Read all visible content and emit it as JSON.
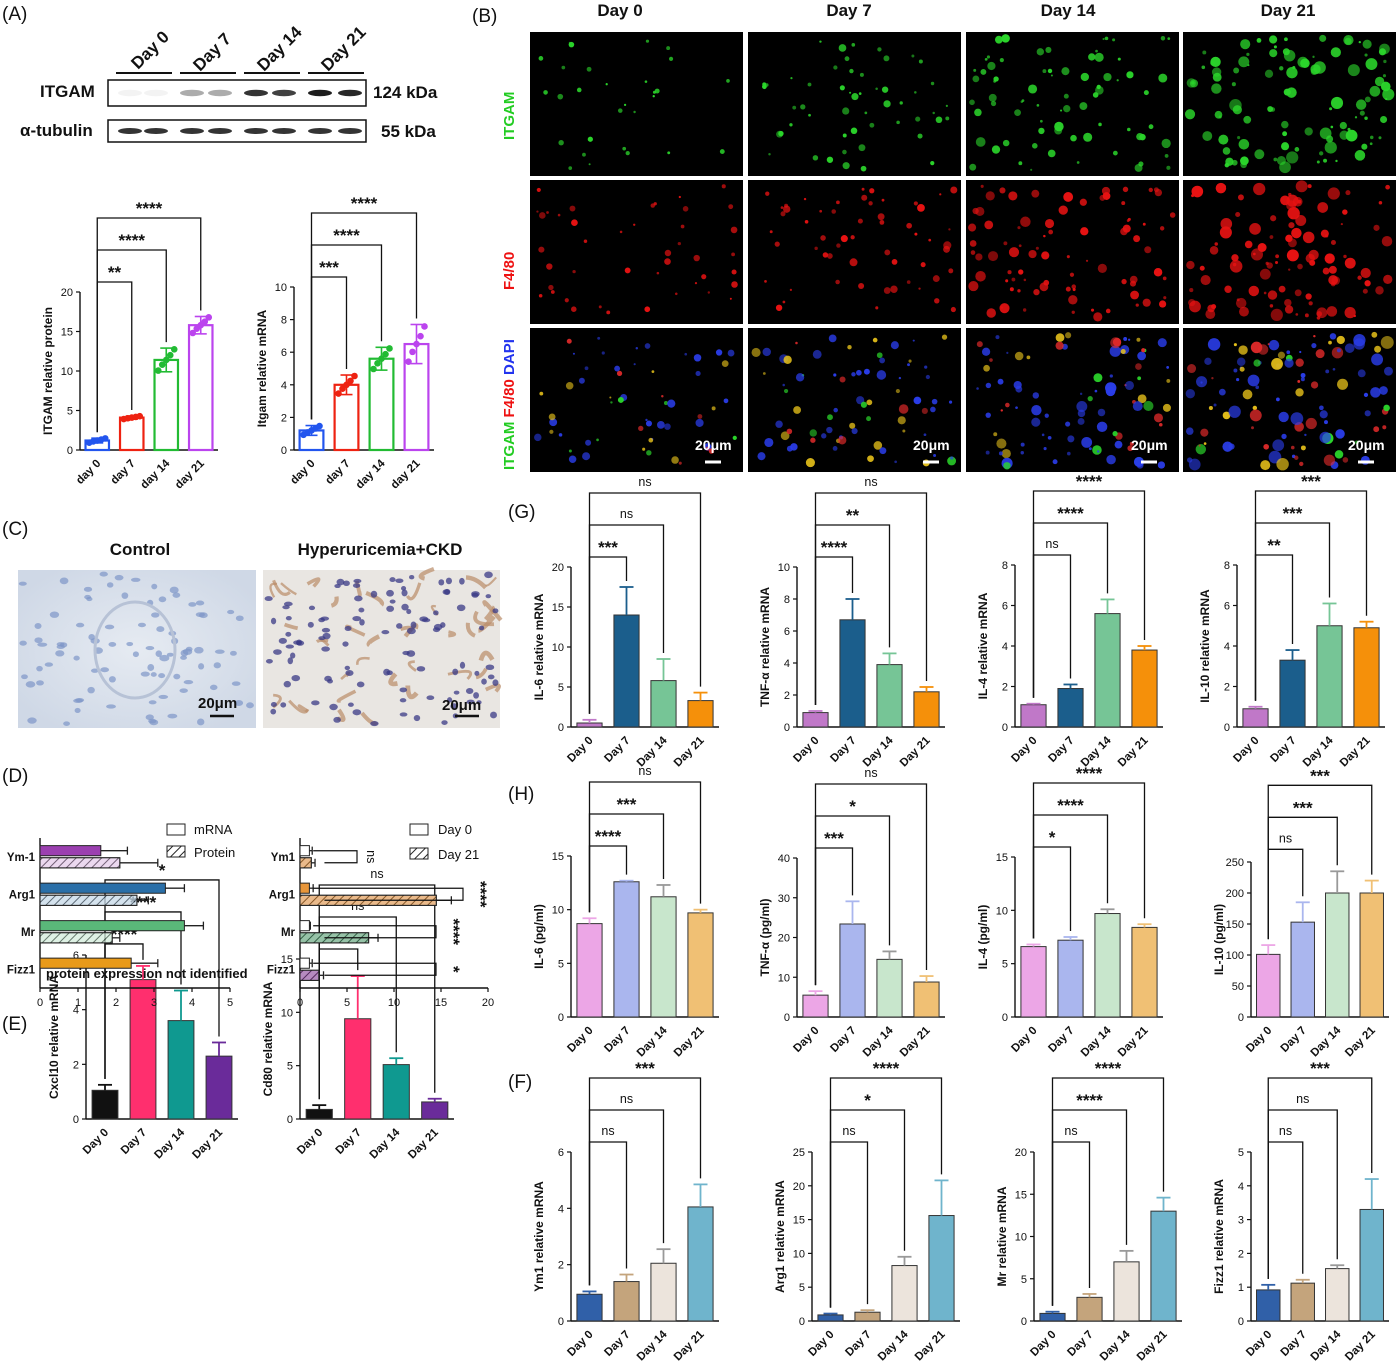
{
  "panel_labels": {
    "A": "(A)",
    "B": "(B)",
    "C": "(C)",
    "D": "(D)",
    "E": "(E)",
    "F": "(F)",
    "G": "(G)",
    "H": "(H)"
  },
  "western": {
    "lanes": [
      "Day 0",
      "Day 7",
      "Day 14",
      "Day 21"
    ],
    "rows": [
      {
        "name": "ITGAM",
        "size": "124 kDa"
      },
      {
        "name": "α-tubulin",
        "size": "55 kDa"
      }
    ]
  },
  "micro": {
    "columns": [
      "Day 0",
      "Day 7",
      "Day 14",
      "Day 21"
    ],
    "rows": [
      {
        "label": "ITGAM",
        "color": "#22cc22"
      },
      {
        "label": "F4/80",
        "color": "#ee1111"
      },
      {
        "label": "DAPI merge"
      }
    ],
    "merge_parts": [
      {
        "t": "ITGAM ",
        "c": "#22cc22"
      },
      {
        "t": "F4/80 ",
        "c": "#ee1111"
      },
      {
        "t": "DAPI",
        "c": "#2233ee"
      }
    ],
    "scale": "20μm"
  },
  "ihc": {
    "labels": [
      "Control",
      "Hyperuricemia+CKD"
    ],
    "scale": "20μm"
  },
  "chart_data": [
    {
      "id": "A1",
      "type": "bar",
      "categories": [
        "day 0",
        "day 7",
        "day 14",
        "day 21"
      ],
      "values": [
        1.2,
        4.1,
        11.4,
        15.8
      ],
      "err": [
        0.3,
        0.2,
        1.5,
        1.1
      ],
      "ylabel": "ITGAM relative protein",
      "ylim": [
        0,
        20
      ],
      "ticks": [
        0,
        5,
        10,
        15,
        20
      ],
      "style": "outline",
      "colors": [
        "#2255ee",
        "#ee2211",
        "#22bb33",
        "#bb44ee"
      ],
      "sig": [
        {
          "t": "**",
          "to": 1
        },
        {
          "t": "****",
          "to": 2
        },
        {
          "t": "****",
          "to": 3
        }
      ]
    },
    {
      "id": "A2",
      "type": "bar",
      "categories": [
        "day 0",
        "day 7",
        "day 14",
        "day 21"
      ],
      "values": [
        1.2,
        4.0,
        5.6,
        6.5
      ],
      "err": [
        0.3,
        0.6,
        0.7,
        1.2
      ],
      "ylabel": "Itgam relative mRNA",
      "ylim": [
        0,
        10
      ],
      "ticks": [
        0,
        2,
        4,
        6,
        8,
        10
      ],
      "style": "outline",
      "colors": [
        "#2255ee",
        "#ee2211",
        "#22bb33",
        "#bb44ee"
      ],
      "sig": [
        {
          "t": "***",
          "to": 1
        },
        {
          "t": "****",
          "to": 2
        },
        {
          "t": "****",
          "to": 3
        }
      ]
    },
    {
      "id": "G1",
      "type": "bar",
      "categories": [
        "Day 0",
        "Day 7",
        "Day 14",
        "Day 21"
      ],
      "values": [
        0.5,
        14.0,
        5.8,
        3.3
      ],
      "err": [
        0.4,
        3.5,
        2.7,
        1.0
      ],
      "ylabel": "IL-6 relative mRNA",
      "ylim": [
        0,
        20
      ],
      "ticks": [
        0,
        5,
        10,
        15,
        20
      ],
      "colors": [
        "#c078c8",
        "#1b5e8c",
        "#76c596",
        "#f5900a"
      ],
      "sig": [
        {
          "t": "***",
          "to": 1
        },
        {
          "t": "ns",
          "to": 2
        },
        {
          "t": "ns",
          "to": 3
        }
      ]
    },
    {
      "id": "G2",
      "type": "bar",
      "categories": [
        "Day 0",
        "Day 7",
        "Day 14",
        "Day 21"
      ],
      "values": [
        0.9,
        6.7,
        3.9,
        2.2
      ],
      "err": [
        0.1,
        1.3,
        0.7,
        0.3
      ],
      "ylabel": "TNF-α relative mRNA",
      "ylim": [
        0,
        10
      ],
      "ticks": [
        0,
        2,
        4,
        6,
        8,
        10
      ],
      "colors": [
        "#c078c8",
        "#1b5e8c",
        "#76c596",
        "#f5900a"
      ],
      "sig": [
        {
          "t": "****",
          "to": 1
        },
        {
          "t": "**",
          "to": 2
        },
        {
          "t": "ns",
          "to": 3
        }
      ]
    },
    {
      "id": "G3",
      "type": "bar",
      "categories": [
        "Day 0",
        "Day 7",
        "Day 14",
        "Day 21"
      ],
      "values": [
        1.1,
        1.9,
        5.6,
        3.8
      ],
      "err": [
        0.05,
        0.2,
        0.7,
        0.2
      ],
      "ylabel": "IL-4 relative mRNA",
      "ylim": [
        0,
        8
      ],
      "ticks": [
        0,
        2,
        4,
        6,
        8
      ],
      "colors": [
        "#c078c8",
        "#1b5e8c",
        "#76c596",
        "#f5900a"
      ],
      "sig": [
        {
          "t": "ns",
          "to": 1
        },
        {
          "t": "****",
          "to": 2
        },
        {
          "t": "****",
          "to": 3
        }
      ]
    },
    {
      "id": "G4",
      "type": "bar",
      "categories": [
        "Day 0",
        "Day 7",
        "Day 14",
        "Day 21"
      ],
      "values": [
        0.9,
        3.3,
        5.0,
        4.9
      ],
      "err": [
        0.1,
        0.5,
        1.1,
        0.3
      ],
      "ylabel": "IL-10 relative mRNA",
      "ylim": [
        0,
        8
      ],
      "ticks": [
        0,
        2,
        4,
        6,
        8
      ],
      "colors": [
        "#c078c8",
        "#1b5e8c",
        "#76c596",
        "#f5900a"
      ],
      "sig": [
        {
          "t": "**",
          "to": 1
        },
        {
          "t": "***",
          "to": 2
        },
        {
          "t": "***",
          "to": 3
        }
      ]
    },
    {
      "id": "H1",
      "type": "bar",
      "categories": [
        "Day 0",
        "Day 7",
        "Day 14",
        "Day 21"
      ],
      "values": [
        8.7,
        12.6,
        11.2,
        9.7
      ],
      "err": [
        0.5,
        0.1,
        1.1,
        0.3
      ],
      "ylabel": "IL-6 (pg/ml)",
      "ylim": [
        0,
        15
      ],
      "ticks": [
        0,
        5,
        10,
        15
      ],
      "colors": [
        "#eca6e6",
        "#aab6ee",
        "#c8e6cc",
        "#f0c074"
      ],
      "sig": [
        {
          "t": "****",
          "to": 1
        },
        {
          "t": "***",
          "to": 2
        },
        {
          "t": "ns",
          "to": 3
        }
      ]
    },
    {
      "id": "H2",
      "type": "bar",
      "categories": [
        "Day 0",
        "Day 7",
        "Day 14",
        "Day 21"
      ],
      "values": [
        5.5,
        23.4,
        14.5,
        8.8
      ],
      "err": [
        1.0,
        5.7,
        2.0,
        1.5
      ],
      "ylabel": "TNF-α (pg/ml)",
      "ylim": [
        0,
        40
      ],
      "ticks": [
        0,
        10,
        20,
        30,
        40
      ],
      "colors": [
        "#eca6e6",
        "#aab6ee",
        "#c8e6cc",
        "#f0c074"
      ],
      "sig": [
        {
          "t": "***",
          "to": 1
        },
        {
          "t": "*",
          "to": 2
        },
        {
          "t": "ns",
          "to": 3
        }
      ]
    },
    {
      "id": "H3",
      "type": "bar",
      "categories": [
        "Day 0",
        "Day 7",
        "Day 14",
        "Day 21"
      ],
      "values": [
        6.6,
        7.2,
        9.7,
        8.4
      ],
      "err": [
        0.2,
        0.3,
        0.4,
        0.3
      ],
      "ylabel": "IL-4 (pg/ml)",
      "ylim": [
        0,
        15
      ],
      "ticks": [
        0,
        5,
        10,
        15
      ],
      "colors": [
        "#eca6e6",
        "#aab6ee",
        "#c8e6cc",
        "#f0c074"
      ],
      "sig": [
        {
          "t": "*",
          "to": 1
        },
        {
          "t": "****",
          "to": 2
        },
        {
          "t": "****",
          "to": 3
        }
      ]
    },
    {
      "id": "H4",
      "type": "bar",
      "categories": [
        "Day 0",
        "Day 7",
        "Day 14",
        "Day 21"
      ],
      "values": [
        101,
        153,
        200,
        200
      ],
      "err": [
        15,
        32,
        35,
        20
      ],
      "ylabel": "IL-10 (pg/ml)",
      "ylim": [
        0,
        250
      ],
      "ticks": [
        0,
        50,
        100,
        150,
        200,
        250
      ],
      "colors": [
        "#eca6e6",
        "#aab6ee",
        "#c8e6cc",
        "#f0c074"
      ],
      "sig": [
        {
          "t": "ns",
          "to": 1
        },
        {
          "t": "***",
          "to": 2
        },
        {
          "t": "***",
          "to": 3
        }
      ]
    },
    {
      "id": "E1",
      "type": "bar",
      "categories": [
        "Day 0",
        "Day 7",
        "Day 14",
        "Day 21"
      ],
      "values": [
        1.05,
        5.1,
        3.6,
        2.3
      ],
      "err": [
        0.2,
        0.5,
        1.1,
        0.5
      ],
      "ylabel": "Cxcl10 relative mRNA",
      "ylim": [
        0,
        6
      ],
      "ticks": [
        0,
        2,
        4,
        6
      ],
      "colors": [
        "#111111",
        "#ff2f6e",
        "#0f9990",
        "#6a2b9a"
      ],
      "sig": [
        {
          "t": "****",
          "to": 1
        },
        {
          "t": "****",
          "to": 2
        },
        {
          "t": "*",
          "to": 3
        }
      ]
    },
    {
      "id": "E2",
      "type": "bar",
      "categories": [
        "Day 0",
        "Day 7",
        "Day 14",
        "Day 21"
      ],
      "values": [
        0.9,
        9.4,
        5.1,
        1.6
      ],
      "err": [
        0.4,
        4.0,
        0.6,
        0.3
      ],
      "ylabel": "Cd80 relative mRNA",
      "ylim": [
        0,
        15
      ],
      "ticks": [
        0,
        5,
        10,
        15
      ],
      "colors": [
        "#111111",
        "#ff2f6e",
        "#0f9990",
        "#6a2b9a"
      ],
      "sig": [
        {
          "t": "**",
          "to": 1
        },
        {
          "t": "ns",
          "to": 2
        },
        {
          "t": "ns",
          "to": 3
        }
      ]
    },
    {
      "id": "F1",
      "type": "bar",
      "categories": [
        "Day 0",
        "Day 7",
        "Day 14",
        "Day 21"
      ],
      "values": [
        0.95,
        1.4,
        2.05,
        4.05
      ],
      "err": [
        0.1,
        0.25,
        0.5,
        0.8
      ],
      "ylabel": "Ym1 relative mRNA",
      "ylim": [
        0,
        6
      ],
      "ticks": [
        0,
        2,
        4,
        6
      ],
      "colors": [
        "#3060a8",
        "#c4a47c",
        "#ece4dc",
        "#6fb4cc"
      ],
      "sig": [
        {
          "t": "ns",
          "to": 1
        },
        {
          "t": "ns",
          "to": 2
        },
        {
          "t": "***",
          "to": 3
        }
      ]
    },
    {
      "id": "F2",
      "type": "bar",
      "categories": [
        "Day 0",
        "Day 7",
        "Day 14",
        "Day 21"
      ],
      "values": [
        0.9,
        1.3,
        8.2,
        15.6
      ],
      "err": [
        0.2,
        0.3,
        1.3,
        5.2
      ],
      "ylabel": "Arg1 relative mRNA",
      "ylim": [
        0,
        25
      ],
      "ticks": [
        0,
        5,
        10,
        15,
        20,
        25
      ],
      "colors": [
        "#3060a8",
        "#c4a47c",
        "#ece4dc",
        "#6fb4cc"
      ],
      "sig": [
        {
          "t": "ns",
          "to": 1
        },
        {
          "t": "*",
          "to": 2
        },
        {
          "t": "****",
          "to": 3
        }
      ]
    },
    {
      "id": "F3",
      "type": "bar",
      "categories": [
        "Day 0",
        "Day 7",
        "Day 14",
        "Day 21"
      ],
      "values": [
        0.9,
        2.8,
        7.0,
        13.0
      ],
      "err": [
        0.2,
        0.4,
        1.3,
        1.6
      ],
      "ylabel": "Mr relative mRNA",
      "ylim": [
        0,
        20
      ],
      "ticks": [
        0,
        5,
        10,
        15,
        20
      ],
      "colors": [
        "#3060a8",
        "#c4a47c",
        "#ece4dc",
        "#6fb4cc"
      ],
      "sig": [
        {
          "t": "ns",
          "to": 1
        },
        {
          "t": "****",
          "to": 2
        },
        {
          "t": "****",
          "to": 3
        }
      ]
    },
    {
      "id": "F4",
      "type": "bar",
      "categories": [
        "Day 0",
        "Day 7",
        "Day 14",
        "Day 21"
      ],
      "values": [
        0.92,
        1.12,
        1.55,
        3.3
      ],
      "err": [
        0.15,
        0.1,
        0.1,
        0.9
      ],
      "ylabel": "Fizz1 relative mRNA",
      "ylim": [
        0,
        5
      ],
      "ticks": [
        0,
        1,
        2,
        3,
        4,
        5
      ],
      "colors": [
        "#3060a8",
        "#c4a47c",
        "#ece4dc",
        "#6fb4cc"
      ],
      "sig": [
        {
          "t": "ns",
          "to": 1
        },
        {
          "t": "ns",
          "to": 2
        },
        {
          "t": "***",
          "to": 3
        }
      ]
    },
    {
      "id": "D1",
      "type": "hbar",
      "categories": [
        "Ym-1",
        "Arg1",
        "Mr",
        "Fizz1"
      ],
      "series": [
        {
          "name": "mRNA",
          "values": [
            1.6,
            3.3,
            3.8,
            2.4
          ],
          "err": [
            0.7,
            0.5,
            0.5,
            0.7
          ]
        },
        {
          "name": "Protein",
          "values": [
            2.1,
            2.55,
            1.9,
            null
          ],
          "err": [
            1.0,
            0.3,
            0.2,
            null
          ]
        }
      ],
      "colors": [
        "#9b3fb0",
        "#2a6fa8",
        "#5ab879",
        "#e89a1a"
      ],
      "xlim": [
        0,
        5
      ],
      "ticks": [
        0,
        1,
        2,
        3,
        4,
        5
      ],
      "note": "protein expression not identified"
    },
    {
      "id": "D2",
      "type": "hbar",
      "categories": [
        "Ym1",
        "Arg1",
        "Mr",
        "Fizz1"
      ],
      "series": [
        {
          "name": "Day 0",
          "values": [
            1.0,
            1.0,
            1.0,
            1.0
          ],
          "err": [
            0.3,
            0.4,
            0.1,
            0.3
          ]
        },
        {
          "name": "Day 21",
          "values": [
            1.2,
            14.5,
            7.3,
            2.0
          ],
          "err": [
            0.4,
            1.6,
            1.0,
            0.5
          ]
        }
      ],
      "colors": [
        "#d9822b",
        "#d9822b",
        "#3f8f5f",
        "#7a2a8a"
      ],
      "xlim": [
        0,
        20
      ],
      "ticks": [
        0,
        5,
        10,
        15,
        20
      ],
      "sig": [
        "ns",
        "****",
        "****",
        "*"
      ]
    }
  ]
}
